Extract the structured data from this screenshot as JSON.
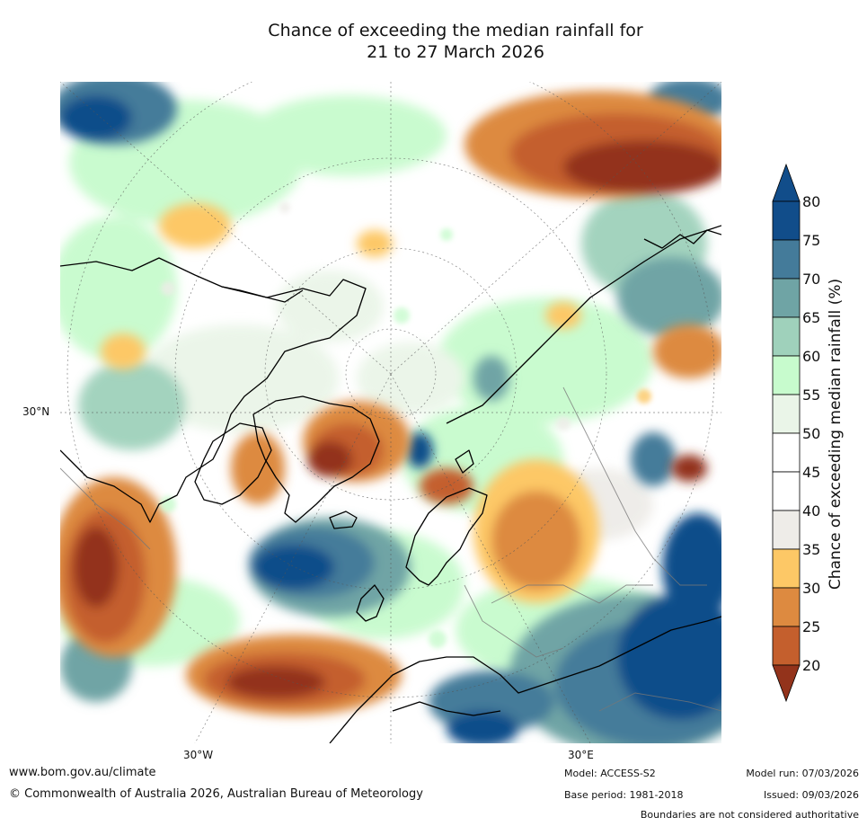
{
  "title": {
    "line1": "Chance of exceeding the median rainfall for",
    "line2": "21 to 27 March 2026"
  },
  "map": {
    "projection": "north-polar-stereographic",
    "lat_labels": [
      "30°N"
    ],
    "lon_labels": [
      "30°W",
      "30°E"
    ],
    "features": [
      "North America",
      "Greenland",
      "Europe",
      "Asia",
      "North Africa",
      "Scandinavia",
      "Iceland",
      "British Isles",
      "Arctic Ocean"
    ]
  },
  "legend": {
    "title": "Chance of exceeding median rainfall (%)",
    "ticks": [
      "80",
      "75",
      "70",
      "65",
      "60",
      "55",
      "50",
      "45",
      "40",
      "35",
      "30",
      "25",
      "20"
    ],
    "colors": {
      "above_80": "#114d8a",
      "75_80": "#114d8a",
      "70_75": "#447b9a",
      "65_70": "#6fa4a5",
      "60_65": "#9fd1bb",
      "55_60": "#c7fbcd",
      "50_55": "#eaf5e8",
      "45_50": "#ffffff",
      "40_45": "#ffffff",
      "35_40": "#eeece8",
      "30_35": "#fdc866",
      "25_30": "#dd8a40",
      "20_25": "#c45f2d",
      "below_20": "#93331b"
    }
  },
  "footer": {
    "website": "www.bom.gov.au/climate",
    "copyright": "© Commonwealth of Australia 2026, Australian Bureau of Meteorology",
    "model": "Model: ACCESS-S2",
    "base_period": "Base period: 1981-2018",
    "model_run": "Model run: 07/03/2026",
    "issued": "Issued: 09/03/2026",
    "disclaimer": "Boundaries are not considered authoritative"
  }
}
